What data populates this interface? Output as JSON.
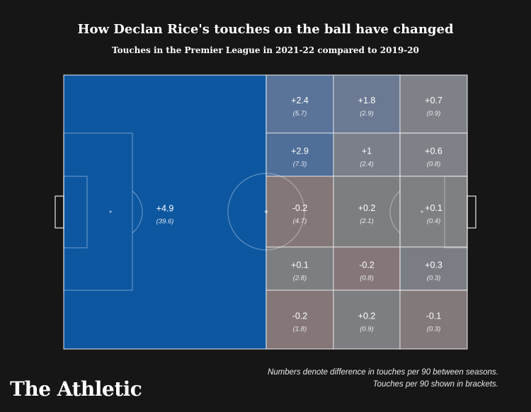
{
  "header": {
    "title": "How Declan Rice's touches on the ball have changed",
    "subtitle": "Touches in the Premier League in 2021-22 compared to 2019-20"
  },
  "chart_data": {
    "type": "heatmap",
    "description_note": "Numbers denote difference in touches per 90 between seasons.",
    "bracket_note": "Touches per 90 shown in brackets.",
    "zones": [
      {
        "id": "own-half",
        "diff": "+4.9",
        "per90": "(39.6)",
        "color": "#0d57a1"
      },
      {
        "row": 1,
        "col": 1,
        "diff": "+2.4",
        "per90": "(5.7)",
        "color": "#5a7398"
      },
      {
        "row": 1,
        "col": 2,
        "diff": "+1.8",
        "per90": "(2.9)",
        "color": "#6b7a92"
      },
      {
        "row": 1,
        "col": 3,
        "diff": "+0.7",
        "per90": "(0.9)",
        "color": "#7e8187"
      },
      {
        "row": 2,
        "col": 1,
        "diff": "+2.9",
        "per90": "(7.3)",
        "color": "#4f6e98"
      },
      {
        "row": 2,
        "col": 2,
        "diff": "+1",
        "per90": "(2.4)",
        "color": "#7a7f89"
      },
      {
        "row": 2,
        "col": 3,
        "diff": "+0.6",
        "per90": "(0.8)",
        "color": "#7e8187"
      },
      {
        "row": 3,
        "col": 1,
        "diff": "-0.2",
        "per90": "(4.7)",
        "color": "#847778"
      },
      {
        "row": 3,
        "col": 2,
        "diff": "+0.2",
        "per90": "(2.1)",
        "color": "#7d7e80"
      },
      {
        "row": 3,
        "col": 3,
        "diff": "+0.1",
        "per90": "(0.4)",
        "color": "#7f8082"
      },
      {
        "row": 4,
        "col": 1,
        "diff": "+0.1",
        "per90": "(2.8)",
        "color": "#7c7e81"
      },
      {
        "row": 4,
        "col": 2,
        "diff": "-0.2",
        "per90": "(0.8)",
        "color": "#857777"
      },
      {
        "row": 4,
        "col": 3,
        "diff": "+0.3",
        "per90": "(0.3)",
        "color": "#7a7e84"
      },
      {
        "row": 5,
        "col": 1,
        "diff": "-0.2",
        "per90": "(1.8)",
        "color": "#857777"
      },
      {
        "row": 5,
        "col": 2,
        "diff": "+0.2",
        "per90": "(0.9)",
        "color": "#7c7e81"
      },
      {
        "row": 5,
        "col": 3,
        "diff": "-0.1",
        "per90": "(0.3)",
        "color": "#827a7a"
      }
    ]
  },
  "brand": {
    "name": "The Athletic"
  }
}
